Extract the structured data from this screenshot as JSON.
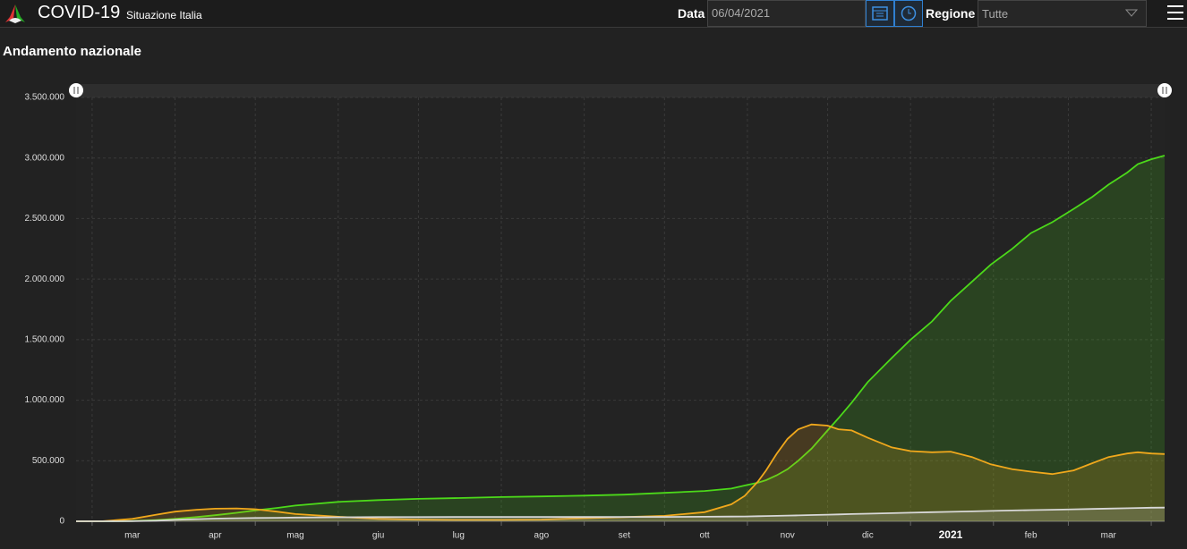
{
  "header": {
    "title": "COVID-19",
    "subtitle": "Situazione Italia",
    "date_label": "Data",
    "date_value": "06/04/2021",
    "region_label": "Regione",
    "region_value": "Tutte"
  },
  "section_title": "Andamento nazionale",
  "chart_data": {
    "type": "area",
    "x": [
      0,
      10,
      21,
      30,
      37,
      45,
      52,
      60,
      67,
      75,
      82,
      98,
      113,
      128,
      143,
      159,
      174,
      190,
      205,
      220,
      235,
      245,
      250,
      255,
      258,
      262,
      266,
      270,
      275,
      281,
      285,
      290,
      296,
      305,
      312,
      320,
      327,
      335,
      342,
      350,
      357,
      365,
      373,
      380,
      386,
      393,
      397,
      402,
      407
    ],
    "series": [
      {
        "color": "#4cd91a",
        "values": [
          0,
          0,
          2000,
          10000,
          20000,
          35000,
          50000,
          70000,
          90000,
          110000,
          130000,
          160000,
          175000,
          185000,
          192000,
          200000,
          205000,
          212000,
          220000,
          235000,
          250000,
          270000,
          295000,
          320000,
          340000,
          380000,
          430000,
          500000,
          600000,
          750000,
          850000,
          980000,
          1150000,
          1350000,
          1500000,
          1650000,
          1820000,
          1980000,
          2120000,
          2250000,
          2380000,
          2470000,
          2580000,
          2680000,
          2780000,
          2880000,
          2950000,
          2990000,
          3020000
        ]
      },
      {
        "color": "#f0a81c",
        "values": [
          0,
          1000,
          20000,
          55000,
          80000,
          95000,
          104000,
          106000,
          100000,
          80000,
          60000,
          38000,
          20000,
          14000,
          12000,
          12000,
          14000,
          25000,
          35000,
          45000,
          75000,
          140000,
          210000,
          330000,
          420000,
          560000,
          680000,
          760000,
          800000,
          790000,
          760000,
          750000,
          690000,
          610000,
          580000,
          570000,
          575000,
          530000,
          470000,
          430000,
          410000,
          390000,
          420000,
          480000,
          530000,
          560000,
          570000,
          560000,
          555000
        ]
      },
      {
        "color": "#d8d8d8",
        "values": [
          0,
          0,
          1000,
          5000,
          12000,
          18000,
          22000,
          25000,
          27000,
          29000,
          31000,
          33000,
          34500,
          35000,
          35200,
          35300,
          35500,
          35700,
          35900,
          36000,
          37500,
          39000,
          40000,
          42000,
          43500,
          45000,
          47000,
          49000,
          52000,
          55000,
          57000,
          60000,
          63000,
          67000,
          71000,
          75000,
          78000,
          82000,
          86000,
          89000,
          92000,
          95000,
          99000,
          102000,
          105000,
          108000,
          110000,
          112000,
          113000
        ]
      }
    ],
    "xlim": [
      0,
      407
    ],
    "xticks": [
      {
        "value": 21,
        "label": "mar"
      },
      {
        "value": 52,
        "label": "apr"
      },
      {
        "value": 82,
        "label": "mag"
      },
      {
        "value": 113,
        "label": "giu"
      },
      {
        "value": 143,
        "label": "lug"
      },
      {
        "value": 174,
        "label": "ago"
      },
      {
        "value": 205,
        "label": "set"
      },
      {
        "value": 235,
        "label": "ott"
      },
      {
        "value": 266,
        "label": "nov"
      },
      {
        "value": 296,
        "label": "dic"
      },
      {
        "value": 327,
        "label": "2021"
      },
      {
        "value": 357,
        "label": "feb"
      },
      {
        "value": 386,
        "label": "mar"
      }
    ],
    "xgridlines": [
      6,
      37,
      67,
      98,
      128,
      159,
      190,
      220,
      251,
      281,
      312,
      343,
      371,
      402
    ],
    "ylim": [
      0,
      3500000
    ],
    "yticks": [
      0,
      {
        "value": 500000,
        "label": "500.000"
      },
      {
        "value": 1000000,
        "label": "1.000.000"
      },
      {
        "value": 1500000,
        "label": "1.500.000"
      },
      {
        "value": 2000000,
        "label": "2.000.000"
      },
      {
        "value": 2500000,
        "label": "2.500.000"
      },
      {
        "value": 3000000,
        "label": "3.000.000"
      },
      {
        "value": 3500000,
        "label": "3.500.000"
      }
    ],
    "grid": true
  }
}
